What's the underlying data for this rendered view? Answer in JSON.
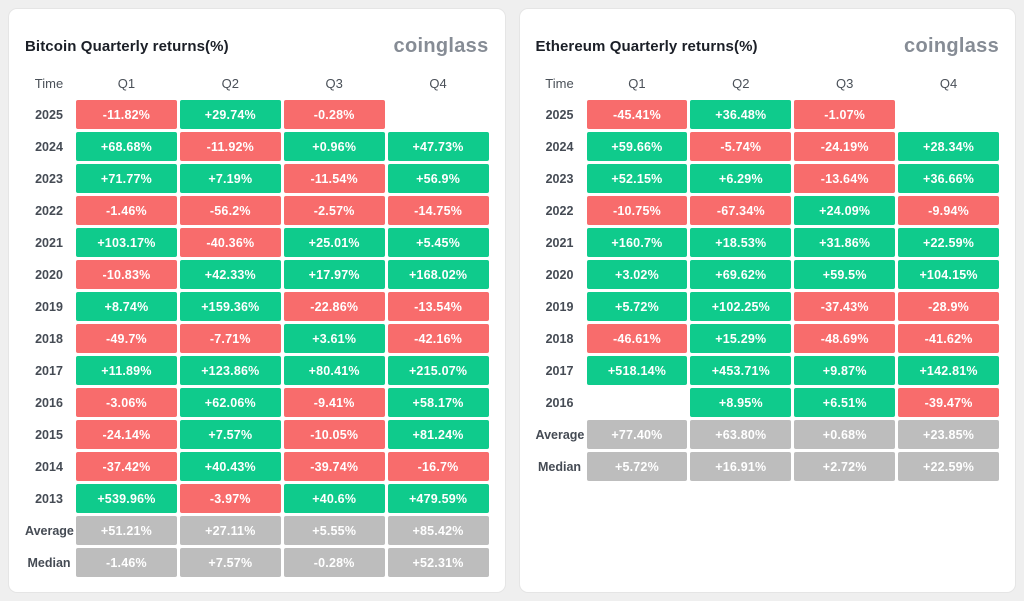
{
  "colors": {
    "positive": "#0fcb8c",
    "negative": "#f86c6c",
    "stat_row": "#bdbdbd",
    "cell_text": "#ffffff",
    "page_background": "#efefef",
    "card_background": "#ffffff"
  },
  "chart_data": [
    {
      "type": "table",
      "title": "Bitcoin Quarterly returns(%)",
      "watermark": "coinglass",
      "columns": [
        "Time",
        "Q1",
        "Q2",
        "Q3",
        "Q4"
      ],
      "rows": [
        {
          "label": "2025",
          "kind": "year",
          "values": [
            "-11.82%",
            "+29.74%",
            "-0.28%",
            ""
          ]
        },
        {
          "label": "2024",
          "kind": "year",
          "values": [
            "+68.68%",
            "-11.92%",
            "+0.96%",
            "+47.73%"
          ]
        },
        {
          "label": "2023",
          "kind": "year",
          "values": [
            "+71.77%",
            "+7.19%",
            "-11.54%",
            "+56.9%"
          ]
        },
        {
          "label": "2022",
          "kind": "year",
          "values": [
            "-1.46%",
            "-56.2%",
            "-2.57%",
            "-14.75%"
          ]
        },
        {
          "label": "2021",
          "kind": "year",
          "values": [
            "+103.17%",
            "-40.36%",
            "+25.01%",
            "+5.45%"
          ]
        },
        {
          "label": "2020",
          "kind": "year",
          "values": [
            "-10.83%",
            "+42.33%",
            "+17.97%",
            "+168.02%"
          ]
        },
        {
          "label": "2019",
          "kind": "year",
          "values": [
            "+8.74%",
            "+159.36%",
            "-22.86%",
            "-13.54%"
          ]
        },
        {
          "label": "2018",
          "kind": "year",
          "values": [
            "-49.7%",
            "-7.71%",
            "+3.61%",
            "-42.16%"
          ]
        },
        {
          "label": "2017",
          "kind": "year",
          "values": [
            "+11.89%",
            "+123.86%",
            "+80.41%",
            "+215.07%"
          ]
        },
        {
          "label": "2016",
          "kind": "year",
          "values": [
            "-3.06%",
            "+62.06%",
            "-9.41%",
            "+58.17%"
          ]
        },
        {
          "label": "2015",
          "kind": "year",
          "values": [
            "-24.14%",
            "+7.57%",
            "-10.05%",
            "+81.24%"
          ]
        },
        {
          "label": "2014",
          "kind": "year",
          "values": [
            "-37.42%",
            "+40.43%",
            "-39.74%",
            "-16.7%"
          ]
        },
        {
          "label": "2013",
          "kind": "year",
          "values": [
            "+539.96%",
            "-3.97%",
            "+40.6%",
            "+479.59%"
          ]
        },
        {
          "label": "Average",
          "kind": "stat",
          "values": [
            "+51.21%",
            "+27.11%",
            "+5.55%",
            "+85.42%"
          ]
        },
        {
          "label": "Median",
          "kind": "stat",
          "values": [
            "-1.46%",
            "+7.57%",
            "-0.28%",
            "+52.31%"
          ]
        }
      ]
    },
    {
      "type": "table",
      "title": "Ethereum Quarterly returns(%)",
      "watermark": "coinglass",
      "columns": [
        "Time",
        "Q1",
        "Q2",
        "Q3",
        "Q4"
      ],
      "rows": [
        {
          "label": "2025",
          "kind": "year",
          "values": [
            "-45.41%",
            "+36.48%",
            "-1.07%",
            ""
          ]
        },
        {
          "label": "2024",
          "kind": "year",
          "values": [
            "+59.66%",
            "-5.74%",
            "-24.19%",
            "+28.34%"
          ]
        },
        {
          "label": "2023",
          "kind": "year",
          "values": [
            "+52.15%",
            "+6.29%",
            "-13.64%",
            "+36.66%"
          ]
        },
        {
          "label": "2022",
          "kind": "year",
          "values": [
            "-10.75%",
            "-67.34%",
            "+24.09%",
            "-9.94%"
          ]
        },
        {
          "label": "2021",
          "kind": "year",
          "values": [
            "+160.7%",
            "+18.53%",
            "+31.86%",
            "+22.59%"
          ]
        },
        {
          "label": "2020",
          "kind": "year",
          "values": [
            "+3.02%",
            "+69.62%",
            "+59.5%",
            "+104.15%"
          ]
        },
        {
          "label": "2019",
          "kind": "year",
          "values": [
            "+5.72%",
            "+102.25%",
            "-37.43%",
            "-28.9%"
          ]
        },
        {
          "label": "2018",
          "kind": "year",
          "values": [
            "-46.61%",
            "+15.29%",
            "-48.69%",
            "-41.62%"
          ]
        },
        {
          "label": "2017",
          "kind": "year",
          "values": [
            "+518.14%",
            "+453.71%",
            "+9.87%",
            "+142.81%"
          ]
        },
        {
          "label": "2016",
          "kind": "year",
          "values": [
            "",
            "+8.95%",
            "+6.51%",
            "-39.47%"
          ]
        },
        {
          "label": "Average",
          "kind": "stat",
          "values": [
            "+77.40%",
            "+63.80%",
            "+0.68%",
            "+23.85%"
          ]
        },
        {
          "label": "Median",
          "kind": "stat",
          "values": [
            "+5.72%",
            "+16.91%",
            "+2.72%",
            "+22.59%"
          ]
        }
      ]
    }
  ]
}
